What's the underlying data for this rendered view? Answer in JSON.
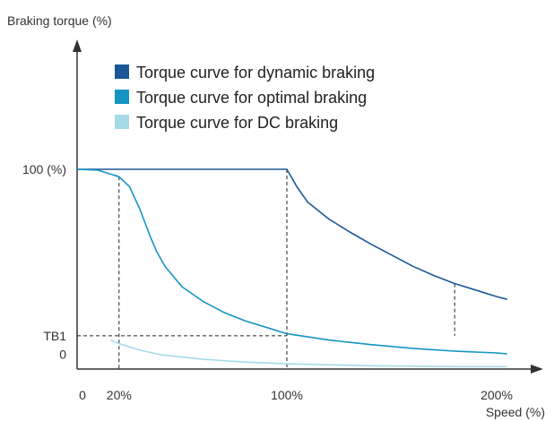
{
  "chart_data": {
    "type": "line",
    "ylabel": "Braking torque (%)",
    "xlabel": "Speed (%)",
    "x_ticks": [
      {
        "value": 0,
        "label": "0"
      },
      {
        "value": 20,
        "label": "20%"
      },
      {
        "value": 100,
        "label": "100%"
      },
      {
        "value": 200,
        "label": "200%"
      }
    ],
    "y_ticks": [
      {
        "value": 0,
        "label": "0"
      },
      {
        "value": 10,
        "label": "TB1"
      },
      {
        "value": 100,
        "label": "100 (%)"
      }
    ],
    "xlim": [
      0,
      210
    ],
    "ylim": [
      -8,
      100
    ],
    "legend_position": "top",
    "series": [
      {
        "name": "Torque curve for dynamic braking",
        "color": "#1b5797",
        "points": [
          [
            0,
            100
          ],
          [
            100,
            100
          ],
          [
            105,
            90.1
          ],
          [
            110,
            82.2
          ],
          [
            120,
            73.1
          ],
          [
            130,
            66.1
          ],
          [
            140,
            59.6
          ],
          [
            150,
            53.6
          ],
          [
            160,
            47.6
          ],
          [
            170,
            42.6
          ],
          [
            180,
            38.2
          ],
          [
            190,
            34.7
          ],
          [
            200,
            31.2
          ],
          [
            205,
            29.7
          ]
        ]
      },
      {
        "name": "Torque curve for optimal braking",
        "color": "#1495c2",
        "points": [
          [
            0,
            100
          ],
          [
            10,
            99.5
          ],
          [
            20,
            96
          ],
          [
            25,
            90.6
          ],
          [
            30,
            78.2
          ],
          [
            35,
            63.3
          ],
          [
            38,
            55.4
          ],
          [
            42,
            47.4
          ],
          [
            50,
            36.5
          ],
          [
            60,
            28.6
          ],
          [
            70,
            22.6
          ],
          [
            80,
            18.1
          ],
          [
            90,
            14.6
          ],
          [
            100,
            11.1
          ],
          [
            120,
            7.7
          ],
          [
            140,
            5.2
          ],
          [
            160,
            3.2
          ],
          [
            180,
            1.7
          ],
          [
            200,
            0.7
          ],
          [
            205,
            0.2
          ]
        ]
      },
      {
        "name": "Torque curve for DC braking",
        "color": "#a5dbe6",
        "points": [
          [
            16,
            7.7
          ],
          [
            20,
            5.7
          ],
          [
            30,
            2.2
          ],
          [
            40,
            -0.3
          ],
          [
            60,
            -2.7
          ],
          [
            80,
            -4.2
          ],
          [
            100,
            -5.2
          ],
          [
            140,
            -6.2
          ],
          [
            180,
            -6.7
          ],
          [
            205,
            -6.7
          ]
        ]
      }
    ],
    "reference_lines": [
      {
        "from": [
          20,
          96
        ],
        "to": [
          20,
          -8
        ]
      },
      {
        "from": [
          100,
          100
        ],
        "to": [
          100,
          -8
        ]
      },
      {
        "from": [
          180,
          38.2
        ],
        "to": [
          180,
          10
        ]
      },
      {
        "from": [
          0,
          10
        ],
        "to": [
          100,
          10
        ]
      }
    ]
  }
}
